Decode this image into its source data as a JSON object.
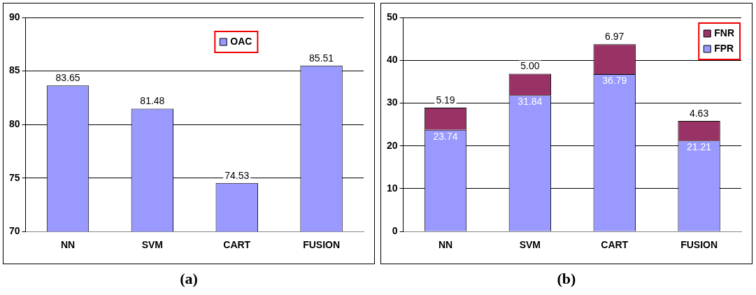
{
  "chart_data": [
    {
      "type": "bar",
      "categories": [
        "NN",
        "SVM",
        "CART",
        "FUSION"
      ],
      "series": [
        {
          "name": "OAC",
          "color": "#9999ff",
          "values": [
            83.65,
            81.48,
            74.53,
            85.51
          ]
        }
      ],
      "ylim": [
        70,
        90
      ],
      "yticks": [
        70,
        75,
        80,
        85,
        90
      ],
      "grid": "y",
      "legend": "top right",
      "data_labels": true,
      "annotations": [
        "(a)"
      ]
    },
    {
      "type": "bar",
      "stacked": true,
      "categories": [
        "NN",
        "SVM",
        "CART",
        "FUSION"
      ],
      "series": [
        {
          "name": "FPR",
          "color": "#9999ff",
          "values": [
            23.74,
            31.84,
            36.79,
            21.21
          ],
          "value_labels": [
            "23.74",
            "31.84",
            "36.79",
            "21.21"
          ]
        },
        {
          "name": "FNR",
          "color": "#993366",
          "values": [
            5.19,
            5.0,
            6.97,
            4.63
          ],
          "value_labels": [
            "5.19",
            "5.00",
            "6.97",
            "4.63"
          ]
        }
      ],
      "ylim": [
        0,
        50
      ],
      "yticks": [
        0,
        10,
        20,
        30,
        40,
        50
      ],
      "grid": "y",
      "legend": "top right",
      "annotations": [
        "(b)"
      ]
    }
  ]
}
